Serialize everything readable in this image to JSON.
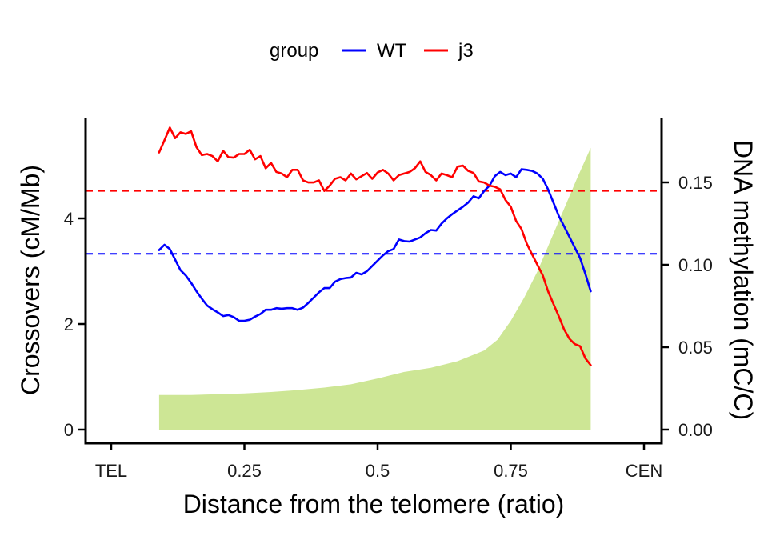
{
  "chart_data": {
    "type": "line",
    "legend": {
      "title": "group",
      "position": "top",
      "entries": [
        "WT",
        "j3"
      ]
    },
    "x_axis": {
      "label": "Distance from the telomere (ratio)",
      "range": [
        0.0,
        1.0
      ],
      "ticks": [
        {
          "value": 0.0,
          "label": "TEL"
        },
        {
          "value": 0.25,
          "label": "0.25"
        },
        {
          "value": 0.5,
          "label": "0.5"
        },
        {
          "value": 0.75,
          "label": "0.75"
        },
        {
          "value": 1.0,
          "label": "CEN"
        }
      ]
    },
    "y_axis_left": {
      "label": "Crossovers (cM/Mb)",
      "range": [
        0,
        6
      ],
      "ticks": [
        {
          "value": 0,
          "label": "0"
        },
        {
          "value": 2,
          "label": "2"
        },
        {
          "value": 4,
          "label": "4"
        }
      ]
    },
    "y_axis_right": {
      "label": "DNA methylation (mC/C)",
      "range": [
        0,
        0.19
      ],
      "ticks": [
        {
          "value": 0.0,
          "label": "0.00"
        },
        {
          "value": 0.05,
          "label": "0.05"
        },
        {
          "value": 0.1,
          "label": "0.10"
        },
        {
          "value": 0.15,
          "label": "0.15"
        }
      ]
    },
    "series": [
      {
        "name": "WT",
        "color": "#0000ff",
        "axis": "left",
        "x": [
          0.09,
          0.1,
          0.11,
          0.12,
          0.13,
          0.14,
          0.15,
          0.16,
          0.17,
          0.18,
          0.19,
          0.2,
          0.21,
          0.22,
          0.23,
          0.24,
          0.25,
          0.26,
          0.27,
          0.28,
          0.29,
          0.3,
          0.31,
          0.32,
          0.33,
          0.34,
          0.35,
          0.36,
          0.37,
          0.38,
          0.39,
          0.4,
          0.41,
          0.42,
          0.43,
          0.44,
          0.45,
          0.46,
          0.47,
          0.48,
          0.49,
          0.5,
          0.51,
          0.52,
          0.53,
          0.54,
          0.55,
          0.56,
          0.57,
          0.58,
          0.59,
          0.6,
          0.61,
          0.62,
          0.63,
          0.64,
          0.65,
          0.66,
          0.67,
          0.68,
          0.69,
          0.7,
          0.71,
          0.72,
          0.73,
          0.74,
          0.75,
          0.76,
          0.77,
          0.78,
          0.79,
          0.8,
          0.81,
          0.82,
          0.83,
          0.84,
          0.85,
          0.86,
          0.87,
          0.88,
          0.89,
          0.9
        ],
        "y": [
          3.4,
          3.5,
          3.42,
          3.22,
          3.02,
          2.92,
          2.78,
          2.62,
          2.48,
          2.35,
          2.28,
          2.22,
          2.15,
          2.17,
          2.13,
          2.06,
          2.06,
          2.08,
          2.14,
          2.19,
          2.27,
          2.27,
          2.3,
          2.29,
          2.3,
          2.3,
          2.27,
          2.31,
          2.4,
          2.5,
          2.6,
          2.68,
          2.68,
          2.8,
          2.85,
          2.87,
          2.88,
          2.97,
          2.94,
          3.0,
          3.1,
          3.2,
          3.3,
          3.38,
          3.42,
          3.6,
          3.57,
          3.56,
          3.6,
          3.64,
          3.72,
          3.78,
          3.77,
          3.9,
          4.0,
          4.08,
          4.15,
          4.22,
          4.3,
          4.42,
          4.38,
          4.52,
          4.62,
          4.8,
          4.88,
          4.82,
          4.85,
          4.78,
          4.93,
          4.92,
          4.9,
          4.85,
          4.75,
          4.55,
          4.3,
          4.05,
          3.85,
          3.65,
          3.45,
          3.25,
          2.95,
          2.62
        ]
      },
      {
        "name": "j3",
        "color": "#ff0000",
        "axis": "left",
        "x": [
          0.09,
          0.1,
          0.11,
          0.12,
          0.13,
          0.14,
          0.15,
          0.16,
          0.17,
          0.18,
          0.19,
          0.2,
          0.21,
          0.22,
          0.23,
          0.24,
          0.25,
          0.26,
          0.27,
          0.28,
          0.29,
          0.3,
          0.31,
          0.32,
          0.33,
          0.34,
          0.35,
          0.36,
          0.37,
          0.38,
          0.39,
          0.4,
          0.41,
          0.42,
          0.43,
          0.44,
          0.45,
          0.46,
          0.47,
          0.48,
          0.49,
          0.5,
          0.51,
          0.52,
          0.53,
          0.54,
          0.55,
          0.56,
          0.57,
          0.58,
          0.59,
          0.6,
          0.61,
          0.62,
          0.63,
          0.64,
          0.65,
          0.66,
          0.67,
          0.68,
          0.69,
          0.7,
          0.71,
          0.72,
          0.73,
          0.74,
          0.75,
          0.76,
          0.77,
          0.78,
          0.79,
          0.8,
          0.81,
          0.82,
          0.83,
          0.84,
          0.85,
          0.86,
          0.87,
          0.88,
          0.89,
          0.9
        ],
        "y": [
          5.25,
          5.48,
          5.72,
          5.52,
          5.63,
          5.6,
          5.65,
          5.35,
          5.2,
          5.22,
          5.18,
          5.08,
          5.28,
          5.16,
          5.15,
          5.22,
          5.22,
          5.3,
          5.12,
          5.18,
          4.95,
          5.05,
          4.88,
          4.85,
          4.78,
          4.92,
          4.92,
          4.72,
          4.68,
          4.68,
          4.72,
          4.52,
          4.62,
          4.75,
          4.78,
          4.72,
          4.85,
          4.74,
          4.8,
          4.86,
          4.75,
          4.87,
          4.92,
          4.85,
          4.72,
          4.82,
          4.85,
          4.88,
          4.95,
          5.08,
          4.88,
          4.82,
          4.72,
          4.85,
          4.82,
          4.78,
          4.98,
          5.0,
          4.9,
          4.86,
          4.7,
          4.68,
          4.62,
          4.6,
          4.55,
          4.35,
          4.22,
          3.95,
          3.8,
          3.52,
          3.32,
          3.12,
          2.92,
          2.62,
          2.38,
          2.15,
          1.9,
          1.72,
          1.62,
          1.58,
          1.35,
          1.22
        ]
      },
      {
        "name": "DNA methylation",
        "type": "area",
        "color": "#cde695",
        "axis": "right",
        "x": [
          0.09,
          0.15,
          0.2,
          0.25,
          0.3,
          0.35,
          0.4,
          0.45,
          0.5,
          0.55,
          0.6,
          0.65,
          0.7,
          0.725,
          0.75,
          0.775,
          0.8,
          0.825,
          0.85,
          0.875,
          0.9
        ],
        "y": [
          0.021,
          0.021,
          0.0215,
          0.022,
          0.0228,
          0.024,
          0.0255,
          0.0275,
          0.031,
          0.035,
          0.0375,
          0.0415,
          0.048,
          0.0545,
          0.066,
          0.08,
          0.096,
          0.115,
          0.134,
          0.153,
          0.171
        ]
      }
    ],
    "reference_lines": [
      {
        "group": "WT",
        "axis": "left",
        "y": 3.33,
        "style": "dashed",
        "color": "#0000ff"
      },
      {
        "group": "j3",
        "axis": "left",
        "y": 4.52,
        "style": "dashed",
        "color": "#ff0000"
      }
    ]
  }
}
